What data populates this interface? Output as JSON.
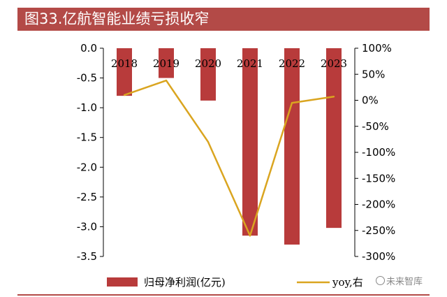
{
  "header": {
    "title": "图33.亿航智能业绩亏损收窄"
  },
  "watermark": {
    "text": "未来智库"
  },
  "chart_data": {
    "type": "bar",
    "categories": [
      "2018",
      "2019",
      "2020",
      "2021",
      "2022",
      "2023"
    ],
    "series": [
      {
        "name": "归母净利润(亿元)",
        "type": "bar",
        "axis": "left",
        "color": "#b83b3b",
        "values": [
          -0.8,
          -0.5,
          -0.88,
          -3.15,
          -3.3,
          -3.02
        ]
      },
      {
        "name": "yoy,右",
        "type": "line",
        "axis": "right",
        "color": "#daa520",
        "values": [
          10,
          38,
          -80,
          -260,
          -5,
          7
        ]
      }
    ],
    "yleft": {
      "min": -3.5,
      "max": 0,
      "ticks": [
        "0.0",
        "-0.5",
        "-1.0",
        "-1.5",
        "-2.0",
        "-2.5",
        "-3.0",
        "-3.5"
      ]
    },
    "yright": {
      "min": -300,
      "max": 100,
      "ticks": [
        "100%",
        "50%",
        "0%",
        "-50%",
        "-100%",
        "-150%",
        "-200%",
        "-250%",
        "-300%"
      ]
    },
    "grid": false,
    "legend": "bottom"
  }
}
